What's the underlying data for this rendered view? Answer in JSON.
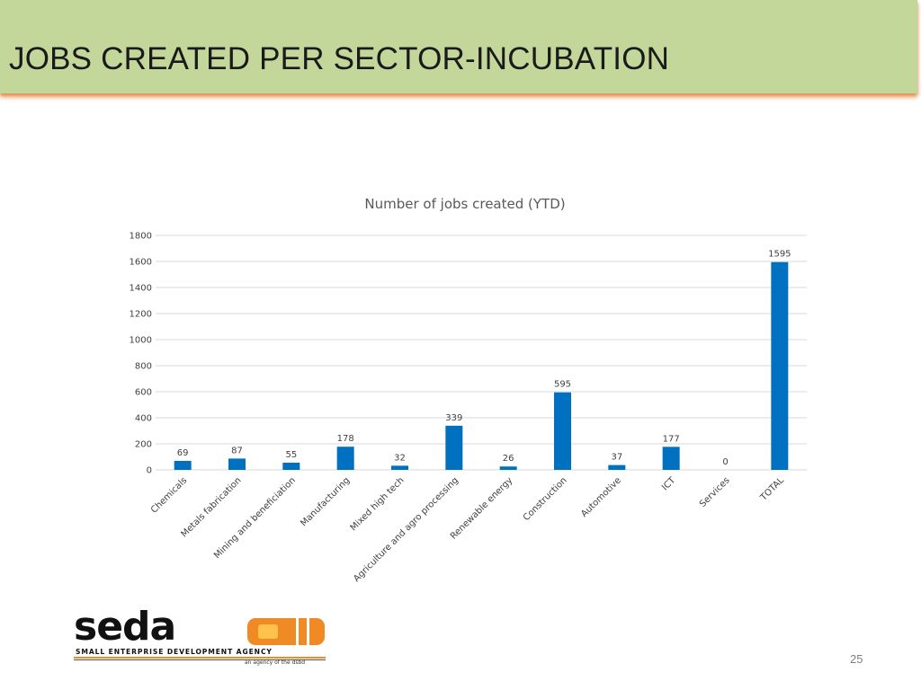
{
  "slide": {
    "title": "JOBS CREATED PER SECTOR-INCUBATION",
    "page_number": "25"
  },
  "logo": {
    "wordmark": "seda",
    "subtitle": "SMALL ENTERPRISE DEVELOPMENT AGENCY",
    "tagline": "an agency of the dsbd",
    "colors": {
      "mark_outer": "#f08a24",
      "mark_inner": "#ffc24a"
    }
  },
  "colors": {
    "banner": "#c4d79b",
    "bar": "#0070c0",
    "gridline": "#d9d9d9"
  },
  "chart_data": {
    "type": "bar",
    "title": "Number of jobs created (YTD)",
    "xlabel": "",
    "ylabel": "",
    "categories": [
      "Chemicals",
      "Metals fabrication",
      "Mining and beneficiation",
      "Manufacturing",
      "Mixed high tech",
      "Agriculture and agro processing",
      "Renewable energy",
      "Construction",
      "Automotive",
      "ICT",
      "Services",
      "TOTAL"
    ],
    "values": [
      69,
      87,
      55,
      178,
      32,
      339,
      26,
      595,
      37,
      177,
      0,
      1595
    ],
    "ylim": [
      0,
      1800
    ],
    "yticks": [
      0,
      200,
      400,
      600,
      800,
      1000,
      1200,
      1400,
      1600,
      1800
    ],
    "grid": true,
    "legend": "none",
    "data_labels": true
  }
}
